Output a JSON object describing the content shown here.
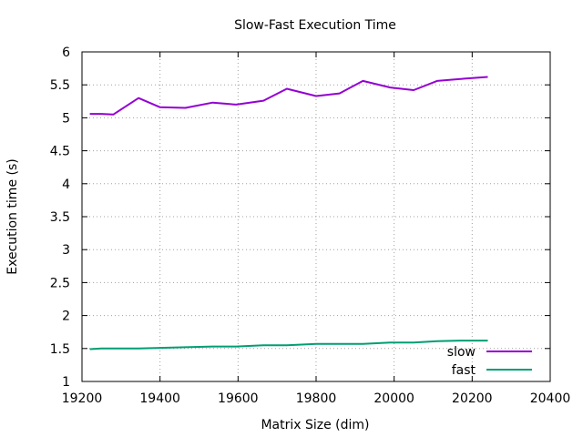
{
  "chart_data": {
    "type": "line",
    "title": "Slow-Fast Execution Time",
    "xlabel": "Matrix Size (dim)",
    "ylabel": "Execution time (s)",
    "xlim": [
      19200,
      20400
    ],
    "ylim": [
      1,
      6
    ],
    "x_ticks": [
      19200,
      19400,
      19600,
      19800,
      20000,
      20200,
      20400
    ],
    "y_ticks": [
      1,
      1.5,
      2,
      2.5,
      3,
      3.5,
      4,
      4.5,
      5,
      5.5,
      6
    ],
    "y_tick_labels": [
      "1",
      "1.5",
      "2",
      "2.5",
      "3",
      "3.5",
      "4",
      "4.5",
      "5",
      "5.5",
      "6"
    ],
    "grid": true,
    "legend_position": "bottom-right",
    "series": [
      {
        "name": "slow",
        "color": "#9400d3",
        "x": [
          19220,
          19250,
          19280,
          19345,
          19400,
          19465,
          19535,
          19595,
          19665,
          19725,
          19800,
          19860,
          19920,
          19990,
          20050,
          20110,
          20170,
          20240
        ],
        "y": [
          5.06,
          5.06,
          5.05,
          5.3,
          5.16,
          5.15,
          5.23,
          5.2,
          5.26,
          5.44,
          5.33,
          5.37,
          5.56,
          5.46,
          5.42,
          5.56,
          5.59,
          5.62
        ]
      },
      {
        "name": "fast",
        "color": "#009e73",
        "x": [
          19220,
          19250,
          19280,
          19345,
          19400,
          19465,
          19535,
          19595,
          19665,
          19725,
          19800,
          19860,
          19920,
          19990,
          20050,
          20110,
          20170,
          20240
        ],
        "y": [
          1.49,
          1.5,
          1.5,
          1.5,
          1.51,
          1.52,
          1.53,
          1.53,
          1.55,
          1.55,
          1.57,
          1.57,
          1.57,
          1.59,
          1.59,
          1.61,
          1.62,
          1.62
        ]
      }
    ]
  }
}
